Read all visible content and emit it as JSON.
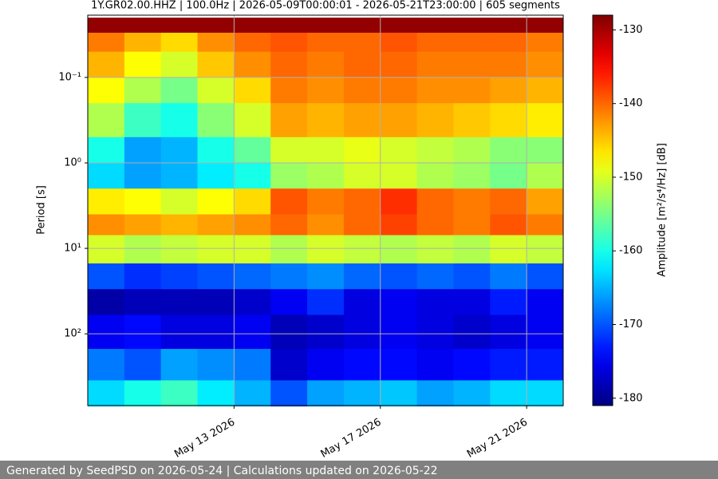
{
  "chart_data": {
    "type": "heatmap",
    "title": "1Y.GR02.00.HHZ | 100.0Hz | 2026-05-09T00:00:01 - 2026-05-21T23:00:00 | 605 segments",
    "ylabel": "Period [s]",
    "x_edges": [
      "2026-05-09",
      "2026-05-10",
      "2026-05-11",
      "2026-05-12",
      "2026-05-13",
      "2026-05-14",
      "2026-05-15",
      "2026-05-16",
      "2026-05-17",
      "2026-05-18",
      "2026-05-19",
      "2026-05-20",
      "2026-05-21",
      "2026-05-22"
    ],
    "y_edges": [
      0.02,
      0.03,
      0.05,
      0.1,
      0.2,
      0.5,
      1,
      2,
      4,
      7,
      15,
      30,
      60,
      150,
      350,
      700
    ],
    "values": [
      [
        -129,
        -129,
        -129,
        -129,
        -129,
        -129,
        -129,
        -129,
        -129,
        -129,
        -129,
        -129,
        -129
      ],
      [
        -141,
        -144,
        -146,
        -142,
        -140,
        -139,
        -140,
        -140,
        -139,
        -140,
        -140,
        -140,
        -141
      ],
      [
        -144,
        -148,
        -150,
        -145,
        -142,
        -140,
        -141,
        -140,
        -140,
        -141,
        -141,
        -141,
        -142
      ],
      [
        -148,
        -152,
        -155,
        -150,
        -146,
        -141,
        -142,
        -141,
        -141,
        -142,
        -142,
        -143,
        -144
      ],
      [
        -152,
        -158,
        -160,
        -154,
        -150,
        -143,
        -144,
        -143,
        -143,
        -144,
        -145,
        -146,
        -147
      ],
      [
        -160,
        -166,
        -165,
        -160,
        -156,
        -150,
        -150,
        -149,
        -150,
        -151,
        -152,
        -154,
        -154
      ],
      [
        -163,
        -166,
        -165,
        -162,
        -160,
        -153,
        -152,
        -150,
        -150,
        -152,
        -153,
        -155,
        -152
      ],
      [
        -147,
        -148,
        -150,
        -148,
        -146,
        -139,
        -141,
        -140,
        -137,
        -140,
        -141,
        -140,
        -143
      ],
      [
        -142,
        -143,
        -144,
        -143,
        -142,
        -140,
        -142,
        -140,
        -138,
        -140,
        -141,
        -139,
        -141
      ],
      [
        -150,
        -152,
        -151,
        -150,
        -150,
        -152,
        -150,
        -151,
        -152,
        -151,
        -152,
        -150,
        -151
      ],
      [
        -170,
        -172,
        -171,
        -170,
        -169,
        -168,
        -167,
        -169,
        -170,
        -169,
        -170,
        -168,
        -170
      ],
      [
        -179,
        -178,
        -178,
        -178,
        -177,
        -175,
        -172,
        -176,
        -175,
        -176,
        -176,
        -173,
        -175
      ],
      [
        -175,
        -174,
        -176,
        -176,
        -175,
        -178,
        -177,
        -176,
        -175,
        -176,
        -177,
        -176,
        -175
      ],
      [
        -168,
        -170,
        -166,
        -167,
        -168,
        -177,
        -175,
        -174,
        -174,
        -175,
        -174,
        -173,
        -173
      ],
      [
        -163,
        -160,
        -158,
        -162,
        -165,
        -170,
        -166,
        -165,
        -164,
        -166,
        -165,
        -163,
        -163
      ]
    ],
    "xlim": [
      "2026-05-09",
      "2026-05-22"
    ],
    "xticks": [
      {
        "value": "2026-05-13",
        "label": "May 13 2026"
      },
      {
        "value": "2026-05-17",
        "label": "May 17 2026"
      },
      {
        "value": "2026-05-21",
        "label": "May 21 2026"
      }
    ],
    "ylim": [
      0.0187,
      690
    ],
    "yticks": [
      {
        "value": 0.1,
        "label": "10⁻¹"
      },
      {
        "value": 1,
        "label": "10⁰"
      },
      {
        "value": 10,
        "label": "10¹"
      },
      {
        "value": 100,
        "label": "10²"
      }
    ],
    "log_y": true,
    "y_inverted": true,
    "grid": true,
    "colormap": "jet",
    "colorbar": {
      "label": "Amplitude [m²/s⁴/Hz] [dB]",
      "lim": [
        -181,
        -128
      ],
      "ticks": [
        -130,
        -140,
        -150,
        -160,
        -170,
        -180
      ]
    }
  },
  "footer": "Generated by SeedPSD on 2026-05-24 | Calculations updated on 2026-05-22"
}
